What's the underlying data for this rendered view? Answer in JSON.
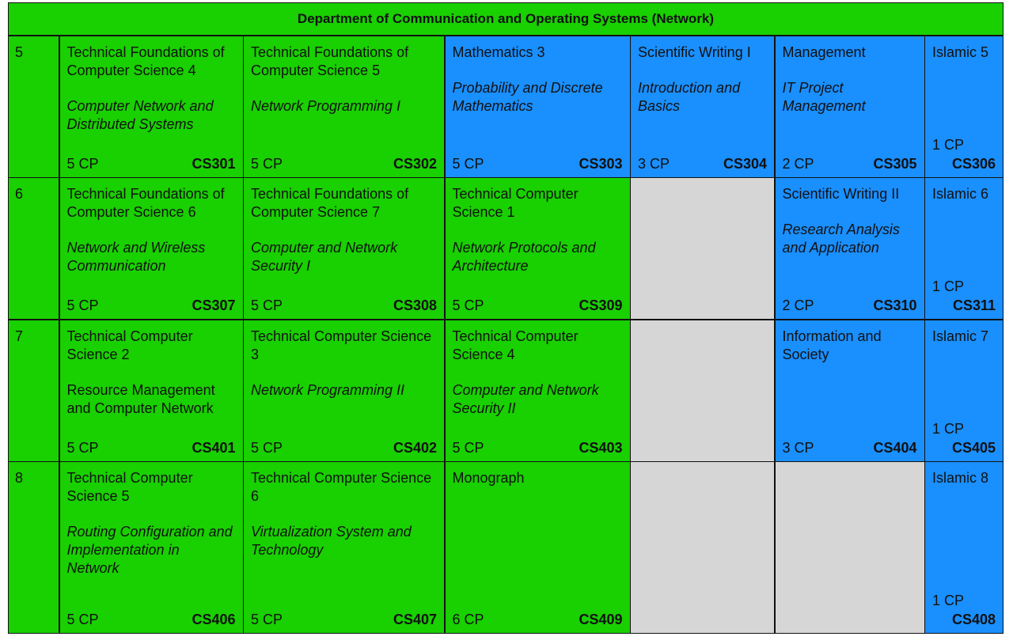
{
  "header": {
    "title": "Department of Communication and Operating Systems (Network)"
  },
  "colors": {
    "green": "#19d000",
    "blue": "#1a8ffe",
    "gray": "#d6d6d6"
  },
  "rows": [
    {
      "semester": "5",
      "courses": [
        {
          "title": "Technical Foundations of Computer Science 4",
          "subtitle": "Computer Network and Distributed Systems",
          "cp": "5 CP",
          "code": "CS301"
        },
        {
          "title": "Technical Foundations of Computer Science 5",
          "subtitle": "Network Programming I",
          "cp": "5 CP",
          "code": "CS302"
        },
        {
          "title": "Mathematics  3",
          "subtitle": "Probability and Discrete Mathematics",
          "cp": "5 CP",
          "code": "CS303"
        },
        {
          "title": "Scientific Writing  I",
          "subtitle": "Introduction and Basics",
          "cp": "3 CP",
          "code": "CS304"
        },
        {
          "title": "Management",
          "subtitle": "IT Project Management",
          "cp": "2 CP",
          "code": "CS305"
        },
        {
          "title": "Islamic 5",
          "cp": "1 CP",
          "code": "CS306"
        }
      ]
    },
    {
      "semester": "6",
      "courses": [
        {
          "title": "Technical Foundations of Computer Science 6",
          "subtitle": "Network and Wireless Communication",
          "cp": "5 CP",
          "code": "CS307"
        },
        {
          "title": "Technical Foundations of Computer Science 7",
          "subtitle": "Computer and Network Security  I",
          "cp": "5 CP",
          "code": "CS308"
        },
        {
          "title": "Technical Computer Science 1",
          "subtitle": "Network Protocols and Architecture",
          "cp": "5 CP",
          "code": "CS309"
        },
        {
          "title": "Scientific Writing  II",
          "subtitle": "Research Analysis and Application",
          "cp": "2 CP",
          "code": "CS310"
        },
        {
          "title": "Islamic 6",
          "cp": "1 CP",
          "code": "CS311"
        }
      ]
    },
    {
      "semester": "7",
      "courses": [
        {
          "title": "Technical Computer Science 2",
          "subtitle": "Resource Management and Computer Network",
          "cp": "5 CP",
          "code": "CS401"
        },
        {
          "title": "Technical Computer Science 3",
          "subtitle": "Network Programming II",
          "cp": "5 CP",
          "code": "CS402"
        },
        {
          "title": "Technical Computer Science 4",
          "subtitle": "Computer and Network Security II",
          "cp": "5 CP",
          "code": "CS403"
        },
        {
          "title": "Information and Society",
          "cp": "3 CP",
          "code": "CS404"
        },
        {
          "title": "Islamic 7",
          "cp": "1 CP",
          "code": "CS405"
        }
      ]
    },
    {
      "semester": "8",
      "courses": [
        {
          "title": "Technical Computer Science 5",
          "subtitle": "Routing Configuration and Implementation in Network",
          "cp": "5 CP",
          "code": "CS406"
        },
        {
          "title": "Technical Computer Science 6",
          "subtitle": "Virtualization System and Technology",
          "cp": "5 CP",
          "code": "CS407"
        },
        {
          "title": "Monograph",
          "cp": "6 CP",
          "code": "CS409"
        },
        {
          "title": "Islamic 8",
          "cp": "1 CP",
          "code": "CS408"
        }
      ]
    }
  ]
}
